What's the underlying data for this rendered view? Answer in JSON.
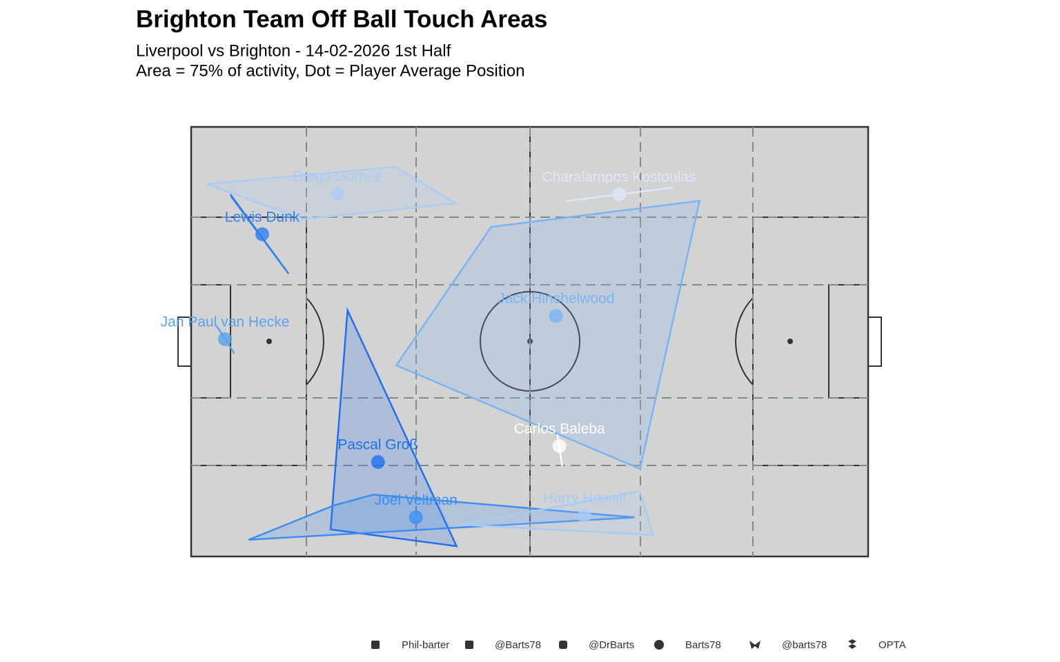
{
  "chart_data": {
    "type": "touch-areas",
    "title": "Brighton Team Off Ball Touch Areas",
    "subtitle": [
      "Liverpool vs Brighton - 14-02-2026 1st Half",
      "Area = 75% of activity, Dot = Player Average Position"
    ],
    "xlim": [
      0,
      100
    ],
    "ylim": [
      0,
      100
    ],
    "series": [
      {
        "name": "Diego Gómez",
        "color": "#a9cdf5",
        "x": [
          2.3,
          30.2,
          39.1,
          16.6
        ],
        "y": [
          86.7,
          90.7,
          82.2,
          78.5
        ],
        "avg_x": 21.6,
        "avg_y": 84.4
      },
      {
        "name": "Charalampos Kostoulas",
        "color": "#dbe9f8",
        "x": [
          55.4,
          71.2
        ],
        "y": [
          82.7,
          85.9
        ],
        "avg_x": 63.2,
        "avg_y": 84.3
      },
      {
        "name": "Lewis Dunk",
        "color": "#2f7ff0",
        "x": [
          5.8,
          14.4,
          6.0
        ],
        "y": [
          84.3,
          65.8,
          83.6
        ],
        "avg_x": 10.5,
        "avg_y": 75.0
      },
      {
        "name": "Jack Hinshelwood",
        "color": "#7ab4f5",
        "x": [
          44.3,
          75.1,
          66.3,
          30.3
        ],
        "y": [
          76.7,
          82.8,
          20.4,
          44.5
        ],
        "avg_x": 53.9,
        "avg_y": 56.0
      },
      {
        "name": "Jan Paul van Hecke",
        "color": "#5aa2ee",
        "x": [
          3.7,
          6.4
        ],
        "y": [
          53.8,
          47.2
        ],
        "avg_x": 5.0,
        "avg_y": 50.6
      },
      {
        "name": "Carlos Baleba",
        "color": "#ffffff",
        "x": [
          54.1,
          54.8
        ],
        "y": [
          28.4,
          21.0
        ],
        "avg_x": 54.4,
        "avg_y": 25.7
      },
      {
        "name": "Pascal Groß",
        "color": "#1f6ff0",
        "x": [
          23.1,
          39.2,
          20.6
        ],
        "y": [
          57.3,
          2.4,
          6.3
        ],
        "avg_x": 27.6,
        "avg_y": 22.0
      },
      {
        "name": "Joël Veltman",
        "color": "#3d8ef0",
        "x": [
          8.5,
          21.1,
          26.9,
          65.5
        ],
        "y": [
          3.9,
          11.9,
          14.4,
          9.1
        ],
        "avg_x": 33.2,
        "avg_y": 9.1
      },
      {
        "name": "Harry Howell",
        "color": "#a8cbf6",
        "x": [
          39.8,
          66.3,
          68.2
        ],
        "y": [
          7.4,
          15.2,
          5.0
        ],
        "avg_x": 58.1,
        "avg_y": 9.5
      }
    ]
  },
  "footer": [
    "Phil-barter",
    "@Barts78",
    "@DrBarts",
    "Barts78",
    "@barts78",
    "OPTA"
  ]
}
